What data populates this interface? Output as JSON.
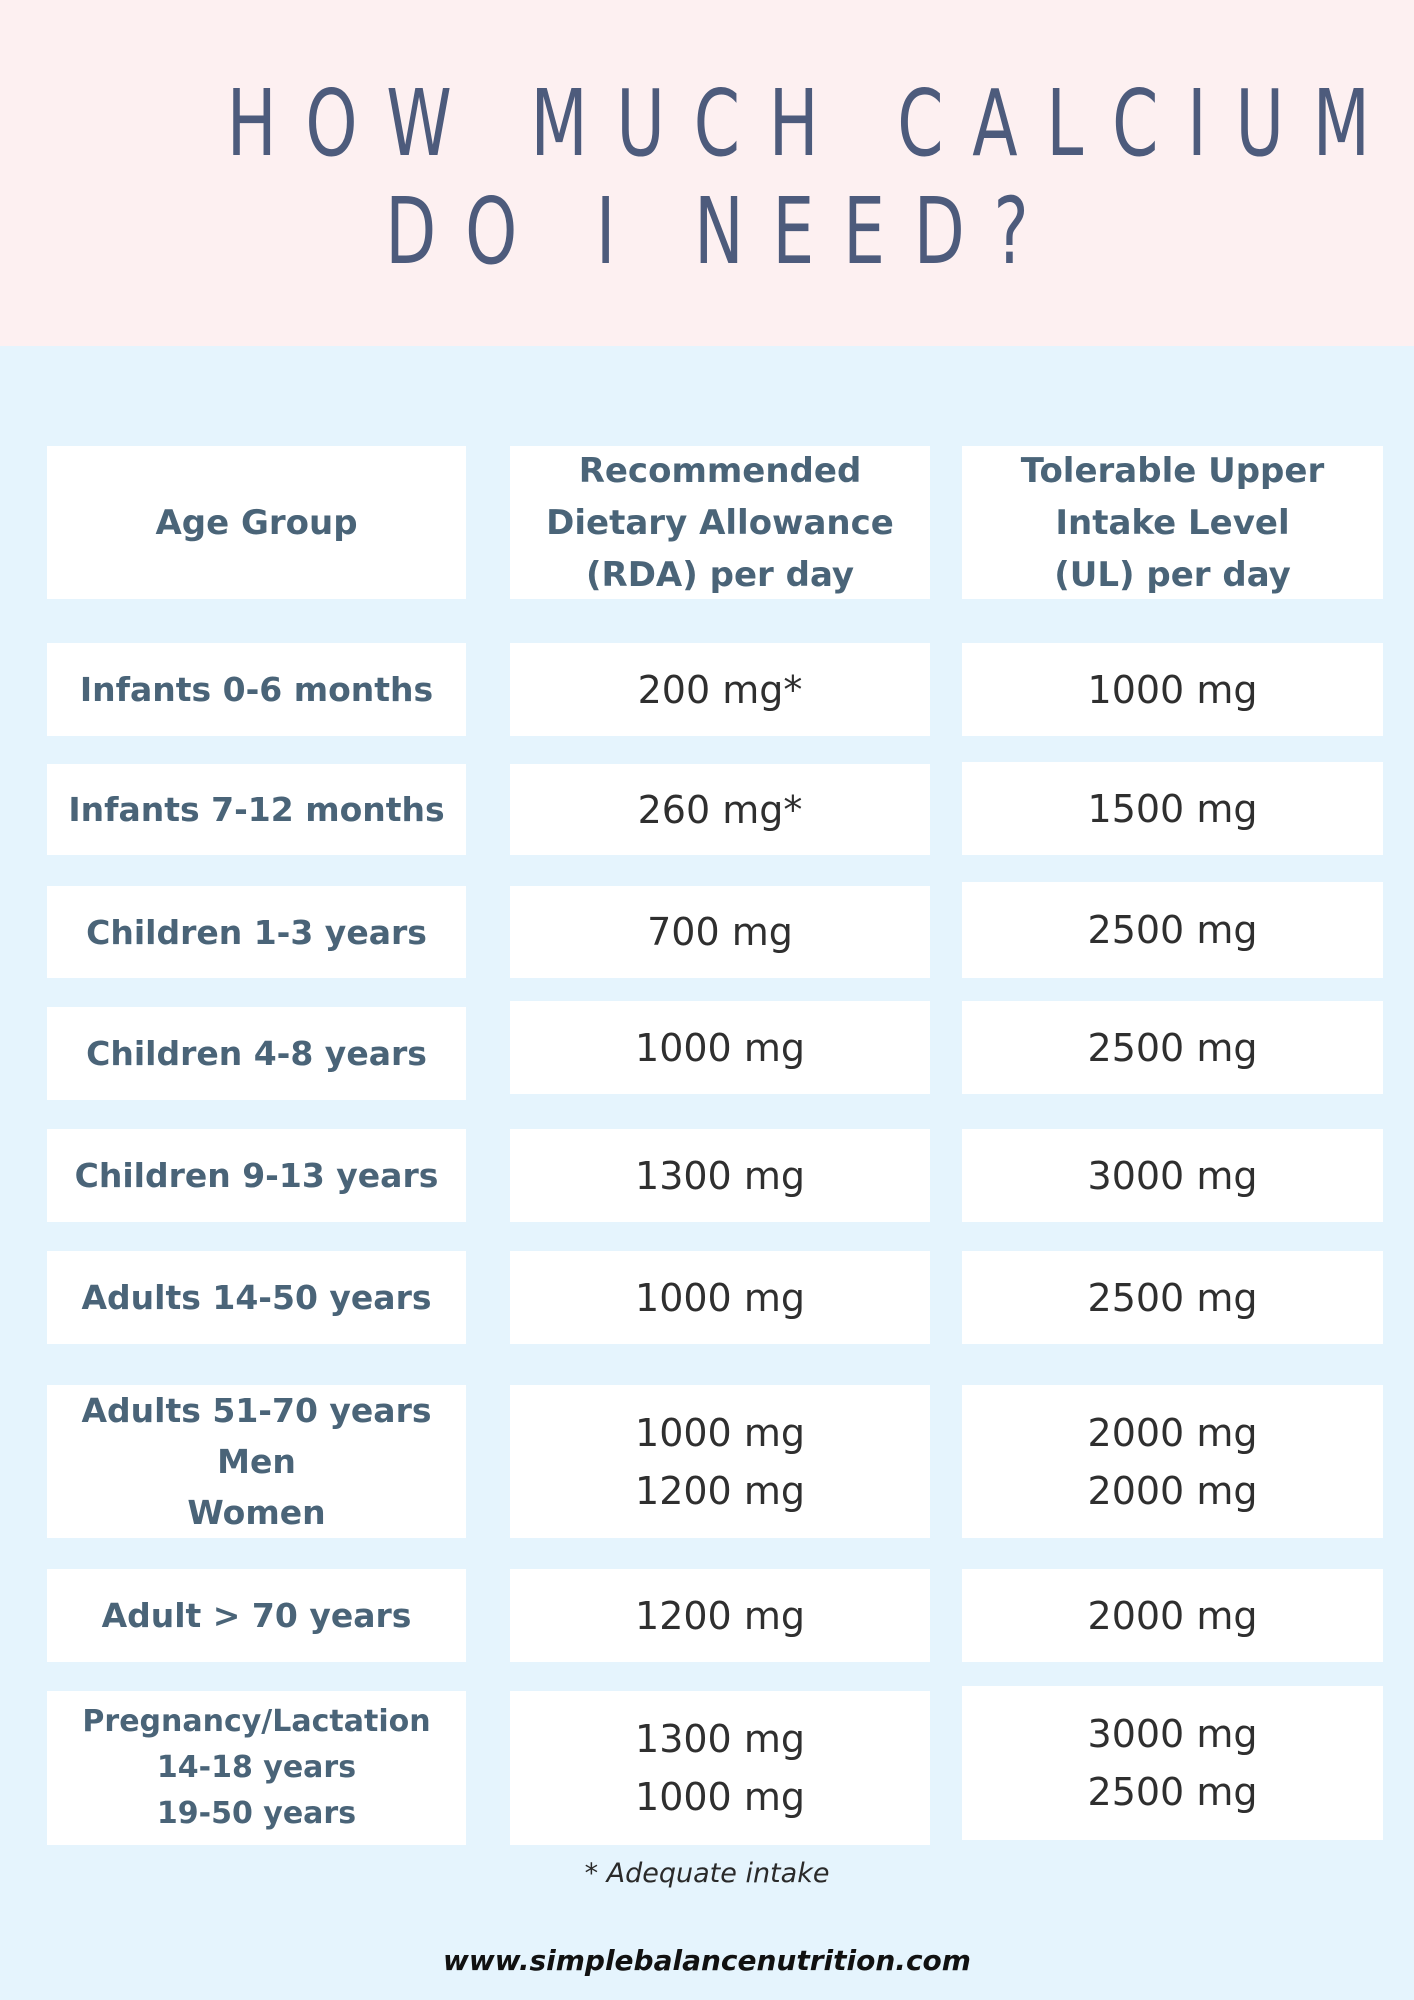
{
  "title": {
    "line1": "HOW MUCH CALCIUM",
    "line2": "DO I NEED?"
  },
  "table": {
    "headers": {
      "age_group": "Age Group",
      "rda": [
        "Recommended",
        "Dietary Allowance",
        "(RDA) per day"
      ],
      "ul": [
        "Tolerable Upper",
        "Intake Level",
        "(UL) per day"
      ]
    },
    "rows": [
      {
        "age": [
          "Infants 0-6 months"
        ],
        "rda": [
          "200 mg*"
        ],
        "ul": [
          "1000 mg"
        ]
      },
      {
        "age": [
          "Infants 7-12 months"
        ],
        "rda": [
          "260 mg*"
        ],
        "ul": [
          "1500 mg"
        ]
      },
      {
        "age": [
          "Children 1-3 years"
        ],
        "rda": [
          "700 mg"
        ],
        "ul": [
          "2500 mg"
        ]
      },
      {
        "age": [
          "Children 4-8 years"
        ],
        "rda": [
          "1000 mg"
        ],
        "ul": [
          "2500 mg"
        ]
      },
      {
        "age": [
          "Children 9-13 years"
        ],
        "rda": [
          "1300 mg"
        ],
        "ul": [
          "3000 mg"
        ]
      },
      {
        "age": [
          "Adults 14-50 years"
        ],
        "rda": [
          "1000 mg"
        ],
        "ul": [
          "2500 mg"
        ]
      },
      {
        "age": [
          "Adults 51-70 years",
          "Men",
          "Women"
        ],
        "rda": [
          "1000 mg",
          "1200 mg"
        ],
        "ul": [
          "2000 mg",
          "2000 mg"
        ]
      },
      {
        "age": [
          "Adult > 70 years"
        ],
        "rda": [
          "1200 mg"
        ],
        "ul": [
          "2000 mg"
        ]
      },
      {
        "age": [
          "Pregnancy/Lactation",
          "14-18 years",
          "19-50 years"
        ],
        "rda": [
          "1300 mg",
          "1000 mg"
        ],
        "ul": [
          "3000 mg",
          "2500 mg"
        ]
      }
    ]
  },
  "footnote": "* Adequate intake",
  "website": "www.simplebalancenutrition.com"
}
